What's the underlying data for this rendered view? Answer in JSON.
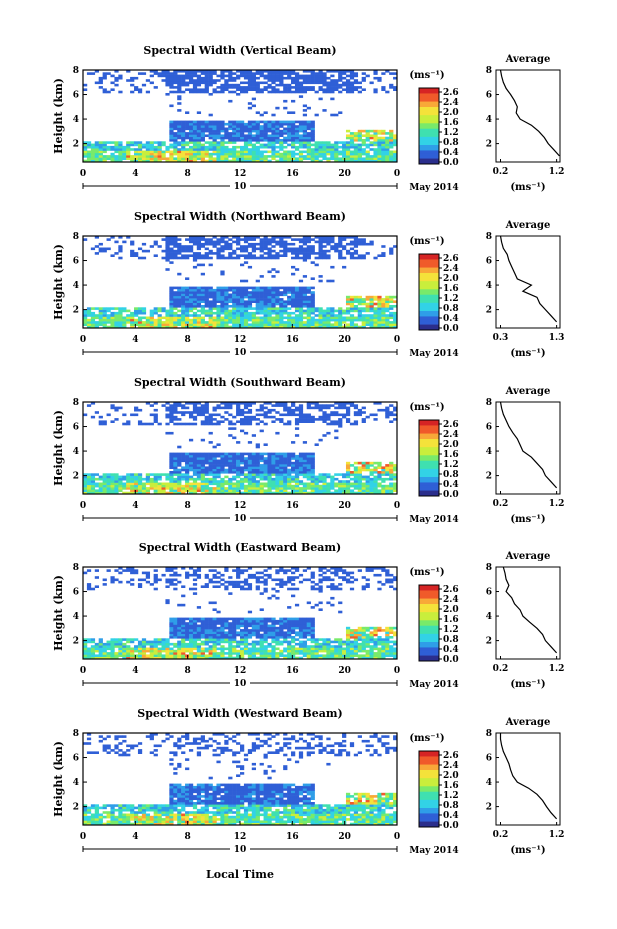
{
  "figure": {
    "bottom_label": "Local Time",
    "date_label": "10",
    "month_label": "May 2014",
    "unit_label": "(ms⁻¹)",
    "avg_xlabel": "(ms⁻¹)",
    "avg_title": "Average",
    "ylabel": "Height (km)",
    "colorbar_ticks": [
      "2.6",
      "2.4",
      "2.0",
      "1.6",
      "1.2",
      "0.8",
      "0.4",
      "0.0"
    ],
    "colors": {
      "scale": [
        "#2b2e8c",
        "#2f5fd6",
        "#2f9ee8",
        "#32d2e6",
        "#3fe0b0",
        "#79ea6a",
        "#c9ee3c",
        "#f4e23a",
        "#f8a838",
        "#f05a2a",
        "#d62424"
      ]
    }
  },
  "chart_data": [
    {
      "type": "heatmap",
      "title": "Spectral Width (Vertical Beam)",
      "xlabel": "Local Time",
      "ylabel": "Height (km)",
      "xlim": [
        0,
        24
      ],
      "ylim": [
        0.5,
        8
      ],
      "x_ticks": [
        "0",
        "4",
        "8",
        "12",
        "16",
        "20",
        "0"
      ],
      "y_ticks": [
        "2",
        "4",
        "6",
        "8"
      ],
      "colorbar": {
        "label": "(ms⁻¹)",
        "range": [
          0,
          2.8
        ]
      },
      "average_profile": {
        "title": "Average",
        "xlabel": "(ms⁻¹)",
        "x_ticks": [
          "0.2",
          "1.2"
        ],
        "y_ticks": [
          "2",
          "4",
          "6",
          "8"
        ],
        "height_km": [
          8,
          7.5,
          7,
          6.5,
          6,
          5.5,
          5,
          4.5,
          4,
          3.5,
          3,
          2.5,
          2,
          1.5,
          1
        ],
        "width_ms": [
          0.2,
          0.22,
          0.25,
          0.3,
          0.38,
          0.45,
          0.5,
          0.48,
          0.55,
          0.75,
          0.88,
          0.98,
          1.05,
          1.15,
          1.25
        ]
      }
    },
    {
      "type": "heatmap",
      "title": "Spectral Width (Northward Beam)",
      "xlabel": "Local Time",
      "ylabel": "Height (km)",
      "xlim": [
        0,
        24
      ],
      "ylim": [
        0.5,
        8
      ],
      "x_ticks": [
        "0",
        "4",
        "8",
        "12",
        "16",
        "20",
        "0"
      ],
      "y_ticks": [
        "2",
        "4",
        "6",
        "8"
      ],
      "colorbar": {
        "label": "(ms⁻¹)",
        "range": [
          0,
          2.8
        ]
      },
      "average_profile": {
        "title": "Average",
        "xlabel": "(ms⁻¹)",
        "x_ticks": [
          "0.3",
          "1.3"
        ],
        "y_ticks": [
          "2",
          "4",
          "6",
          "8"
        ],
        "height_km": [
          8,
          7.5,
          7,
          6.5,
          6,
          5.5,
          5,
          4.5,
          4,
          3.5,
          3,
          2.5,
          2,
          1.5,
          1
        ],
        "width_ms": [
          0.3,
          0.32,
          0.35,
          0.42,
          0.45,
          0.5,
          0.55,
          0.6,
          0.85,
          0.7,
          0.95,
          1.0,
          1.1,
          1.2,
          1.3
        ]
      }
    },
    {
      "type": "heatmap",
      "title": "Spectral Width (Southward Beam)",
      "xlabel": "Local Time",
      "ylabel": "Height (km)",
      "xlim": [
        0,
        24
      ],
      "ylim": [
        0.5,
        8
      ],
      "x_ticks": [
        "0",
        "4",
        "8",
        "12",
        "16",
        "20",
        "0"
      ],
      "y_ticks": [
        "2",
        "4",
        "6",
        "8"
      ],
      "colorbar": {
        "label": "(ms⁻¹)",
        "range": [
          0,
          2.8
        ]
      },
      "average_profile": {
        "title": "Average",
        "xlabel": "(ms⁻¹)",
        "x_ticks": [
          "0.2",
          "1.2"
        ],
        "y_ticks": [
          "2",
          "4",
          "6",
          "8"
        ],
        "height_km": [
          8,
          7.5,
          7,
          6.5,
          6,
          5.5,
          5,
          4.5,
          4,
          3.5,
          3,
          2.5,
          2,
          1.5,
          1
        ],
        "width_ms": [
          0.2,
          0.22,
          0.25,
          0.3,
          0.35,
          0.42,
          0.5,
          0.55,
          0.6,
          0.75,
          0.85,
          0.95,
          1.0,
          1.1,
          1.2
        ]
      }
    },
    {
      "type": "heatmap",
      "title": "Spectral Width (Eastward Beam)",
      "xlabel": "Local Time",
      "ylabel": "Height (km)",
      "xlim": [
        0,
        24
      ],
      "ylim": [
        0.5,
        8
      ],
      "x_ticks": [
        "0",
        "4",
        "8",
        "12",
        "16",
        "20",
        "0"
      ],
      "y_ticks": [
        "2",
        "4",
        "6",
        "8"
      ],
      "colorbar": {
        "label": "(ms⁻¹)",
        "range": [
          0,
          2.8
        ]
      },
      "average_profile": {
        "title": "Average",
        "xlabel": "(ms⁻¹)",
        "x_ticks": [
          "0.2",
          "1.2"
        ],
        "y_ticks": [
          "2",
          "4",
          "6",
          "8"
        ],
        "height_km": [
          8,
          7.5,
          7,
          6.5,
          6,
          5.5,
          5,
          4.5,
          4,
          3.5,
          3,
          2.5,
          2,
          1.5,
          1
        ],
        "width_ms": [
          0.25,
          0.28,
          0.3,
          0.35,
          0.3,
          0.4,
          0.45,
          0.55,
          0.6,
          0.72,
          0.85,
          0.95,
          1.0,
          1.1,
          1.2
        ]
      }
    },
    {
      "type": "heatmap",
      "title": "Spectral Width (Westward Beam)",
      "xlabel": "Local Time",
      "ylabel": "Height (km)",
      "xlim": [
        0,
        24
      ],
      "ylim": [
        0.5,
        8
      ],
      "x_ticks": [
        "0",
        "4",
        "8",
        "12",
        "16",
        "20",
        "0"
      ],
      "y_ticks": [
        "2",
        "4",
        "6",
        "8"
      ],
      "colorbar": {
        "label": "(ms⁻¹)",
        "range": [
          0,
          2.8
        ]
      },
      "average_profile": {
        "title": "Average",
        "xlabel": "(ms⁻¹)",
        "x_ticks": [
          "0.2",
          "1.2"
        ],
        "y_ticks": [
          "2",
          "4",
          "6",
          "8"
        ],
        "height_km": [
          8,
          7.5,
          7,
          6.5,
          6,
          5.5,
          5,
          4.5,
          4,
          3.5,
          3,
          2.5,
          2,
          1.5,
          1
        ],
        "width_ms": [
          0.2,
          0.2,
          0.22,
          0.25,
          0.3,
          0.35,
          0.38,
          0.42,
          0.5,
          0.7,
          0.85,
          0.95,
          1.02,
          1.1,
          1.2
        ]
      }
    }
  ]
}
